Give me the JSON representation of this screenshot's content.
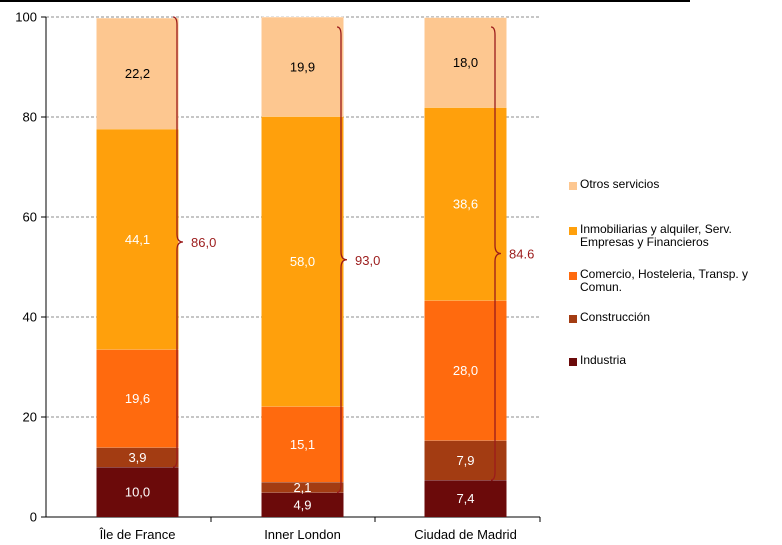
{
  "chart_data": {
    "type": "bar",
    "stacked": true,
    "categories": [
      "Île de France",
      "Inner London",
      "Ciudad de Madrid"
    ],
    "ylim": [
      0,
      100
    ],
    "yticks": [
      "0",
      "20",
      "40",
      "60",
      "80",
      "100"
    ],
    "grid": true,
    "legend_position": "right",
    "series": [
      {
        "name": "Industria",
        "color": "#6b0a0a",
        "label_color": "#ffffff",
        "values": [
          10.0,
          4.9,
          7.4
        ],
        "labels": [
          "10,0",
          "4,9",
          "7,4"
        ]
      },
      {
        "name": "Construcción",
        "color": "#a33c12",
        "label_color": "#ffffff",
        "values": [
          3.9,
          2.1,
          7.9
        ],
        "labels": [
          "3,9",
          "2,1",
          "7,9"
        ]
      },
      {
        "name": "Comercio, Hosteleria, Transp. y Comun.",
        "color": "#ff6a0e",
        "label_color": "#ffffff",
        "values": [
          19.6,
          15.1,
          28.0
        ],
        "labels": [
          "19,6",
          "15,1",
          "28,0"
        ]
      },
      {
        "name": "Inmobiliarias y alquiler, Serv. Empresas y Financieros",
        "color": "#ffa00c",
        "label_color": "#ffffff",
        "values": [
          44.1,
          58.0,
          38.6
        ],
        "labels": [
          "44,1",
          "58,0",
          "38,6"
        ]
      },
      {
        "name": "Otros servicios",
        "color": "#fdc790",
        "label_color": "#000000",
        "values": [
          22.2,
          19.9,
          18.0
        ],
        "labels": [
          "22,2",
          "19,9",
          "18,0"
        ]
      }
    ],
    "brace_color": "#9b1b1b",
    "braces": [
      {
        "from": 10.0,
        "to": 100,
        "label": "86,0"
      },
      {
        "from": 4.9,
        "to": 98,
        "label": "93,0"
      },
      {
        "from": 7.4,
        "to": 98,
        "label": "84.6"
      }
    ]
  },
  "legend": [
    {
      "label": "Otros servicios",
      "color": "#fdc790"
    },
    {
      "label": "Inmobiliarias y alquiler, Serv. Empresas y Financieros",
      "color": "#ffa00c"
    },
    {
      "label": "Comercio, Hosteleria, Transp. y Comun.",
      "color": "#ff6a0e"
    },
    {
      "label": "Construcción",
      "color": "#a33c12"
    },
    {
      "label": "Industria",
      "color": "#6b0a0a"
    }
  ]
}
